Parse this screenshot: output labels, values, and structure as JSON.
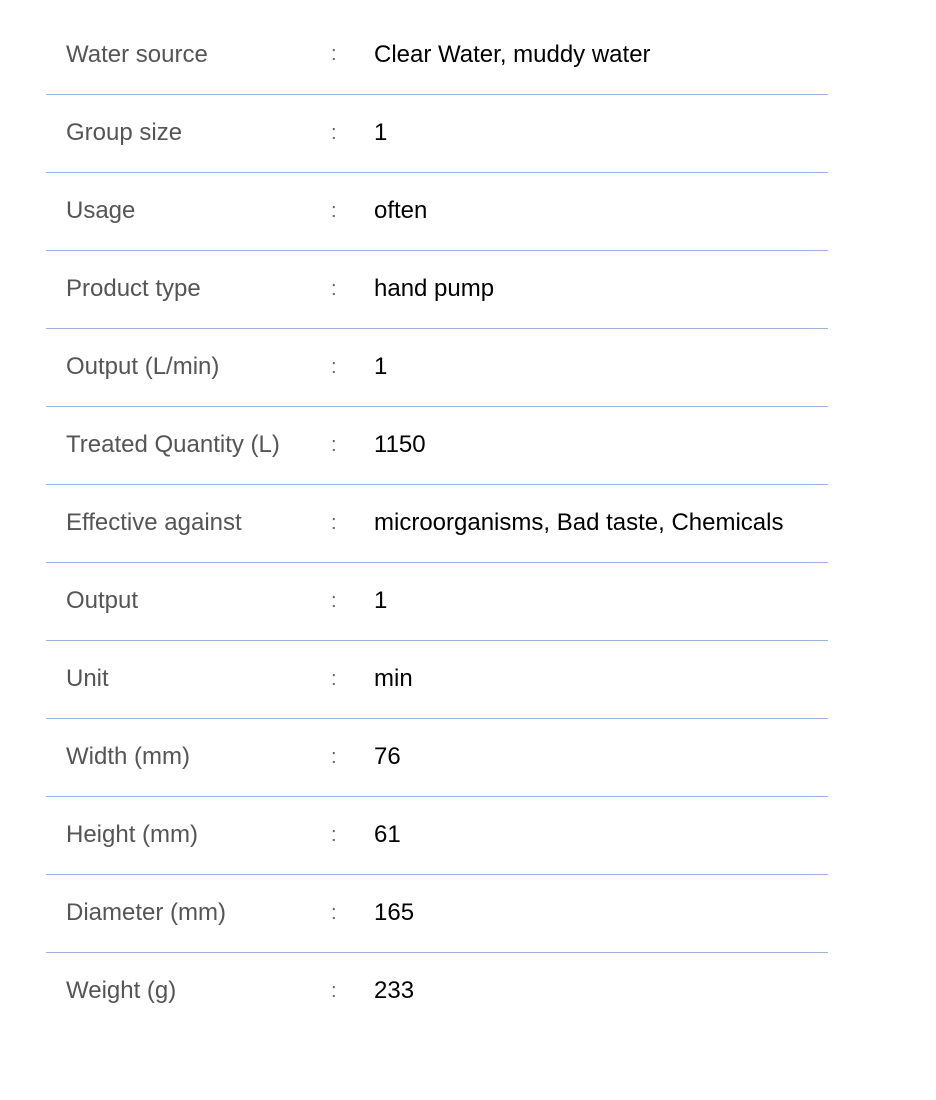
{
  "separator": ":",
  "line_color": "#9ab3d9",
  "rows": [
    {
      "label": "Water source",
      "value": "Clear Water, muddy water"
    },
    {
      "label": "Group size",
      "value": "1"
    },
    {
      "label": "Usage",
      "value": "often"
    },
    {
      "label": "Product type",
      "value": "hand pump"
    },
    {
      "label": "Output (L/min)",
      "value": "1"
    },
    {
      "label": "Treated Quantity (L)",
      "value": "1150"
    },
    {
      "label": "Effective against",
      "value": "microorganisms, Bad taste, Chemicals"
    },
    {
      "label": "Output",
      "value": "1"
    },
    {
      "label": "Unit",
      "value": "min"
    },
    {
      "label": "Width (mm)",
      "value": "76"
    },
    {
      "label": "Height (mm)",
      "value": "61"
    },
    {
      "label": "Diameter (mm)",
      "value": "165"
    },
    {
      "label": "Weight (g)",
      "value": "233"
    }
  ]
}
